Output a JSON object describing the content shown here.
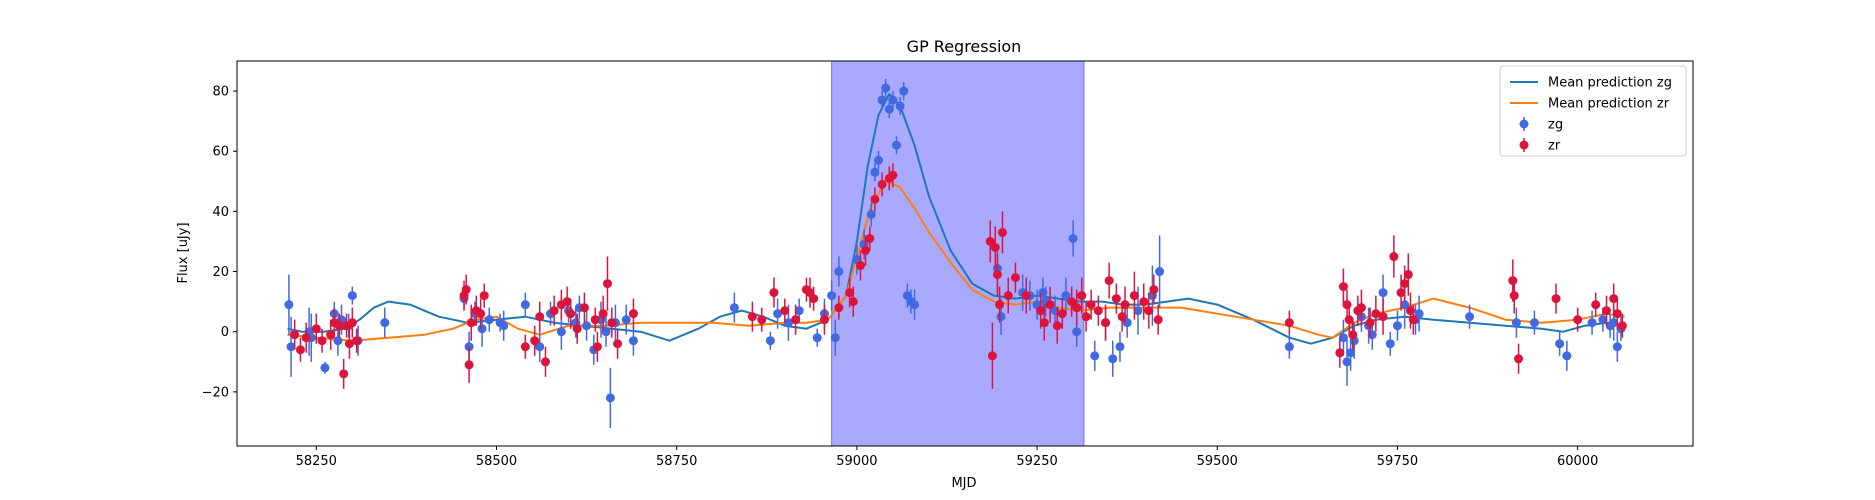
{
  "chart_data": {
    "type": "scatter",
    "title": "GP Regression",
    "xlabel": "MJD",
    "ylabel": "Flux [uJy]",
    "xlim": [
      58140,
      60160
    ],
    "ylim": [
      -38,
      90
    ],
    "x_ticks": [
      58250,
      58500,
      58750,
      59000,
      59250,
      59500,
      59750,
      60000
    ],
    "y_ticks": [
      -20,
      0,
      20,
      40,
      60,
      80
    ],
    "grid": false,
    "legend_position": "top-right",
    "shaded_region": {
      "x_start": 58965,
      "x_end": 59315,
      "color": "#a9a9ff"
    },
    "lines": [
      {
        "name": "Mean prediction zg",
        "color": "#1f77b4",
        "x": [
          58210,
          58230,
          58260,
          58290,
          58310,
          58330,
          58350,
          58380,
          58420,
          58460,
          58500,
          58540,
          58580,
          58620,
          58660,
          58700,
          58740,
          58780,
          58810,
          58840,
          58870,
          58900,
          58930,
          58960,
          58985,
          59000,
          59015,
          59030,
          59045,
          59060,
          59080,
          59100,
          59130,
          59160,
          59190,
          59220,
          59250,
          59280,
          59310,
          59340,
          59370,
          59400,
          59430,
          59460,
          59500,
          59550,
          59600,
          59630,
          59660,
          59690,
          59720,
          59760,
          59800,
          59850,
          59900,
          59950,
          59980,
          60010,
          60040,
          60065
        ],
        "y": [
          1,
          0,
          0,
          1,
          4,
          8,
          10,
          9,
          5,
          3,
          4,
          5,
          3,
          2,
          1,
          0,
          -3,
          1,
          5,
          7,
          5,
          2,
          1,
          4,
          12,
          30,
          55,
          72,
          79,
          75,
          62,
          45,
          27,
          16,
          12,
          11,
          12,
          11,
          10,
          10,
          9,
          9,
          10,
          11,
          9,
          4,
          -2,
          -4,
          -2,
          2,
          4,
          5,
          4,
          3,
          2,
          1,
          0,
          2,
          3,
          2
        ]
      },
      {
        "name": "Mean prediction zr",
        "color": "#ff7f0e",
        "x": [
          58210,
          58250,
          58300,
          58350,
          58400,
          58440,
          58470,
          58500,
          58530,
          58560,
          58600,
          58650,
          58700,
          58750,
          58800,
          58850,
          58900,
          58930,
          58960,
          58985,
          59000,
          59020,
          59040,
          59060,
          59080,
          59100,
          59130,
          59160,
          59190,
          59220,
          59250,
          59280,
          59310,
          59350,
          59400,
          59450,
          59500,
          59550,
          59600,
          59640,
          59660,
          59690,
          59720,
          59760,
          59800,
          59850,
          59900,
          59950,
          60000,
          60040,
          60065
        ],
        "y": [
          -1,
          -2,
          -3,
          -2,
          -1,
          1,
          4,
          5,
          1,
          -1,
          2,
          2,
          3,
          3,
          3,
          2,
          3,
          3,
          4,
          12,
          25,
          42,
          50,
          48,
          41,
          33,
          23,
          14,
          10,
          9,
          10,
          8,
          7,
          8,
          8,
          8,
          6,
          4,
          2,
          -1,
          -2,
          3,
          6,
          8,
          11,
          8,
          4,
          3,
          4,
          6,
          5
        ]
      }
    ],
    "series": [
      {
        "name": "zg",
        "color": "#4169e1",
        "x": [
          58212,
          58215,
          58240,
          58243,
          58262,
          58275,
          58280,
          58285,
          58295,
          58300,
          58308,
          58345,
          58455,
          58462,
          58470,
          58480,
          58490,
          58505,
          58510,
          58540,
          58560,
          58575,
          58590,
          58600,
          58610,
          58615,
          58625,
          58635,
          58645,
          58652,
          58658,
          58665,
          58680,
          58690,
          58830,
          58880,
          58890,
          58905,
          58920,
          58945,
          58955,
          58965,
          58970,
          58975,
          59000,
          59010,
          59020,
          59025,
          59030,
          59035,
          59040,
          59045,
          59050,
          59055,
          59060,
          59065,
          59070,
          59075,
          59080,
          59195,
          59200,
          59230,
          59240,
          59250,
          59258,
          59262,
          59275,
          59290,
          59300,
          59305,
          59330,
          59345,
          59355,
          59365,
          59375,
          59390,
          59410,
          59420,
          59600,
          59675,
          59680,
          59685,
          59690,
          59700,
          59710,
          59715,
          59730,
          59740,
          59750,
          59760,
          59775,
          59780,
          59850,
          59915,
          59940,
          59975,
          59985,
          60020,
          60035,
          60045,
          60050,
          60055,
          60060
        ],
        "y": [
          9,
          -5,
          0,
          -2,
          -12,
          6,
          -3,
          4,
          2,
          12,
          -3,
          3,
          11,
          -5,
          6,
          1,
          4,
          3,
          2,
          9,
          -5,
          6,
          0,
          7,
          3,
          8,
          2,
          -6,
          4,
          0,
          -22,
          3,
          4,
          -3,
          8,
          -3,
          6,
          3,
          7,
          -2,
          6,
          12,
          -2,
          20,
          24,
          29,
          39,
          53,
          57,
          77,
          81,
          74,
          77,
          62,
          75,
          80,
          12,
          10,
          9,
          21,
          5,
          13,
          12,
          9,
          13,
          10,
          7,
          12,
          31,
          0,
          -8,
          3,
          -9,
          -5,
          3,
          7,
          12,
          20,
          -5,
          -2,
          -10,
          -7,
          -3,
          5,
          2,
          -1,
          13,
          -4,
          2,
          9,
          4,
          6,
          5,
          3,
          3,
          -4,
          -8,
          3,
          4,
          2,
          3,
          -5,
          1
        ],
        "error": [
          10,
          10,
          8,
          8,
          2,
          4,
          5,
          5,
          4,
          3,
          5,
          5,
          3,
          5,
          4,
          6,
          4,
          3,
          5,
          4,
          5,
          4,
          6,
          4,
          5,
          4,
          5,
          5,
          6,
          5,
          10,
          6,
          5,
          5,
          5,
          3,
          5,
          6,
          4,
          3,
          5,
          5,
          6,
          5,
          5,
          5,
          4,
          3,
          3,
          3,
          3,
          3,
          3,
          3,
          3,
          3,
          4,
          4,
          5,
          8,
          6,
          6,
          5,
          5,
          5,
          5,
          5,
          6,
          6,
          5,
          5,
          6,
          6,
          5,
          5,
          8,
          10,
          12,
          4,
          6,
          8,
          6,
          6,
          5,
          6,
          5,
          6,
          4,
          5,
          8,
          5,
          6,
          4,
          5,
          4,
          4,
          5,
          4,
          4,
          4,
          6,
          5,
          4
        ]
      },
      {
        "name": "zr",
        "color": "#dc143c",
        "x": [
          58220,
          58228,
          58236,
          58250,
          58258,
          58270,
          58275,
          58282,
          58288,
          58292,
          58296,
          58300,
          58306,
          58455,
          58458,
          58462,
          58465,
          58472,
          58478,
          58483,
          58540,
          58553,
          58560,
          58568,
          58580,
          58590,
          58598,
          58603,
          58612,
          58622,
          58637,
          58640,
          58648,
          58654,
          58660,
          58668,
          58690,
          58855,
          58868,
          58885,
          58900,
          58915,
          58930,
          58935,
          58940,
          58955,
          58975,
          58990,
          58995,
          59005,
          59012,
          59018,
          59025,
          59035,
          59045,
          59050,
          59185,
          59188,
          59192,
          59195,
          59198,
          59202,
          59210,
          59220,
          59235,
          59255,
          59260,
          59268,
          59278,
          59285,
          59298,
          59305,
          59312,
          59318,
          59325,
          59335,
          59345,
          59350,
          59360,
          59368,
          59372,
          59385,
          59398,
          59405,
          59412,
          59418,
          59600,
          59670,
          59675,
          59680,
          59683,
          59688,
          59695,
          59700,
          59712,
          59720,
          59730,
          59745,
          59755,
          59760,
          59765,
          59768,
          59772,
          59910,
          59912,
          59918,
          59970,
          60000,
          60025,
          60040,
          60050,
          60055,
          60062
        ],
        "y": [
          -1,
          -6,
          -2,
          1,
          -3,
          -1,
          3,
          2,
          -14,
          2,
          -4,
          3,
          -3,
          12,
          14,
          -11,
          3,
          7,
          6,
          12,
          -5,
          -3,
          5,
          -10,
          7,
          9,
          10,
          6,
          1,
          8,
          4,
          -5,
          6,
          16,
          3,
          -4,
          6,
          5,
          4,
          13,
          7,
          4,
          14,
          13,
          11,
          4,
          8,
          13,
          10,
          22,
          27,
          31,
          44,
          49,
          51,
          52,
          30,
          -8,
          28,
          19,
          9,
          33,
          12,
          18,
          12,
          7,
          3,
          9,
          2,
          6,
          10,
          8,
          12,
          5,
          9,
          7,
          3,
          17,
          11,
          5,
          9,
          12,
          10,
          7,
          14,
          4,
          3,
          -7,
          15,
          9,
          4,
          -1,
          7,
          8,
          3,
          6,
          5,
          25,
          13,
          16,
          19,
          7,
          4,
          17,
          12,
          -9,
          11,
          4,
          9,
          7,
          11,
          6,
          2
        ],
        "error": [
          5,
          4,
          5,
          5,
          4,
          5,
          5,
          4,
          5,
          4,
          5,
          5,
          4,
          5,
          5,
          6,
          6,
          5,
          5,
          4,
          4,
          5,
          5,
          5,
          5,
          5,
          5,
          5,
          5,
          5,
          4,
          5,
          6,
          9,
          5,
          5,
          5,
          5,
          4,
          5,
          4,
          5,
          4,
          5,
          4,
          5,
          4,
          5,
          5,
          5,
          5,
          4,
          4,
          4,
          4,
          4,
          7,
          11,
          7,
          7,
          6,
          7,
          6,
          5,
          6,
          6,
          6,
          6,
          6,
          5,
          5,
          6,
          6,
          5,
          5,
          5,
          6,
          6,
          5,
          5,
          6,
          8,
          6,
          6,
          5,
          5,
          4,
          5,
          6,
          5,
          5,
          5,
          5,
          6,
          5,
          6,
          6,
          7,
          6,
          6,
          7,
          6,
          5,
          7,
          6,
          5,
          5,
          4,
          4,
          5,
          5,
          5,
          4
        ]
      }
    ]
  }
}
